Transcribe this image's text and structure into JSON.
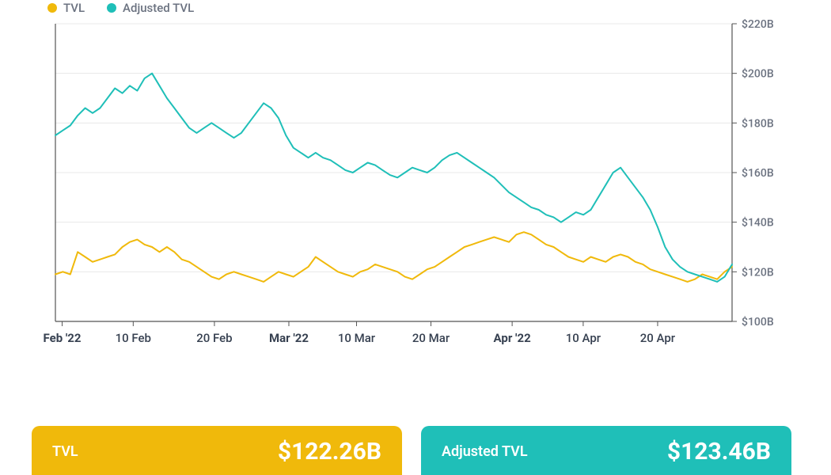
{
  "legend": {
    "series1": {
      "label": "TVL",
      "color": "#f0b90b"
    },
    "series2": {
      "label": "Adjusted TVL",
      "color": "#1fbfb8"
    }
  },
  "chart": {
    "type": "line",
    "background_color": "#ffffff",
    "grid_color": "#e8e8e8",
    "axis_color": "#555555",
    "tick_font_color": "#6b7280",
    "tick_font_size": 14,
    "tick_font_weight_bold": 700,
    "tick_font_weight_normal": 500,
    "line_width": 2,
    "ylim": [
      100,
      220
    ],
    "ytick_step": 20,
    "ytick_labels": [
      "$100B",
      "$120B",
      "$140B",
      "$160B",
      "$180B",
      "$200B",
      "$220B"
    ],
    "xticks": [
      {
        "pos": 0.01,
        "label": "Feb '22",
        "bold": true
      },
      {
        "pos": 0.115,
        "label": "10 Feb",
        "bold": false
      },
      {
        "pos": 0.235,
        "label": "20 Feb",
        "bold": false
      },
      {
        "pos": 0.345,
        "label": "Mar '22",
        "bold": true
      },
      {
        "pos": 0.445,
        "label": "10 Mar",
        "bold": false
      },
      {
        "pos": 0.555,
        "label": "20 Mar",
        "bold": false
      },
      {
        "pos": 0.675,
        "label": "Apr '22",
        "bold": true
      },
      {
        "pos": 0.78,
        "label": "10 Apr",
        "bold": false
      },
      {
        "pos": 0.89,
        "label": "20 Apr",
        "bold": false
      }
    ],
    "series": [
      {
        "name": "TVL",
        "color": "#f0b90b",
        "y": [
          119,
          120,
          119,
          128,
          126,
          124,
          125,
          126,
          127,
          130,
          132,
          133,
          131,
          130,
          128,
          130,
          128,
          125,
          124,
          122,
          120,
          118,
          117,
          119,
          120,
          119,
          118,
          117,
          116,
          118,
          120,
          119,
          118,
          120,
          122,
          126,
          124,
          122,
          120,
          119,
          118,
          120,
          121,
          123,
          122,
          121,
          120,
          118,
          117,
          119,
          121,
          122,
          124,
          126,
          128,
          130,
          131,
          132,
          133,
          134,
          133,
          132,
          135,
          136,
          135,
          133,
          131,
          130,
          128,
          126,
          125,
          124,
          126,
          125,
          124,
          126,
          127,
          126,
          124,
          123,
          121,
          120,
          119,
          118,
          117,
          116,
          117,
          119,
          118,
          117,
          120,
          122
        ]
      },
      {
        "name": "Adjusted TVL",
        "color": "#1fbfb8",
        "y": [
          175,
          177,
          179,
          183,
          186,
          184,
          186,
          190,
          194,
          192,
          195,
          193,
          198,
          200,
          195,
          190,
          186,
          182,
          178,
          176,
          178,
          180,
          178,
          176,
          174,
          176,
          180,
          184,
          188,
          186,
          182,
          175,
          170,
          168,
          166,
          168,
          166,
          165,
          163,
          161,
          160,
          162,
          164,
          163,
          161,
          159,
          158,
          160,
          162,
          161,
          160,
          162,
          165,
          167,
          168,
          166,
          164,
          162,
          160,
          158,
          155,
          152,
          150,
          148,
          146,
          145,
          143,
          142,
          140,
          142,
          144,
          143,
          145,
          150,
          155,
          160,
          162,
          158,
          154,
          150,
          145,
          138,
          130,
          125,
          122,
          120,
          119,
          118,
          117,
          116,
          118,
          123
        ]
      }
    ]
  },
  "cards": {
    "tvl": {
      "label": "TVL",
      "value": "$122.26B",
      "bg": "#f0b90b"
    },
    "adjusted": {
      "label": "Adjusted TVL",
      "value": "$123.46B",
      "bg": "#1fbfb8"
    }
  }
}
